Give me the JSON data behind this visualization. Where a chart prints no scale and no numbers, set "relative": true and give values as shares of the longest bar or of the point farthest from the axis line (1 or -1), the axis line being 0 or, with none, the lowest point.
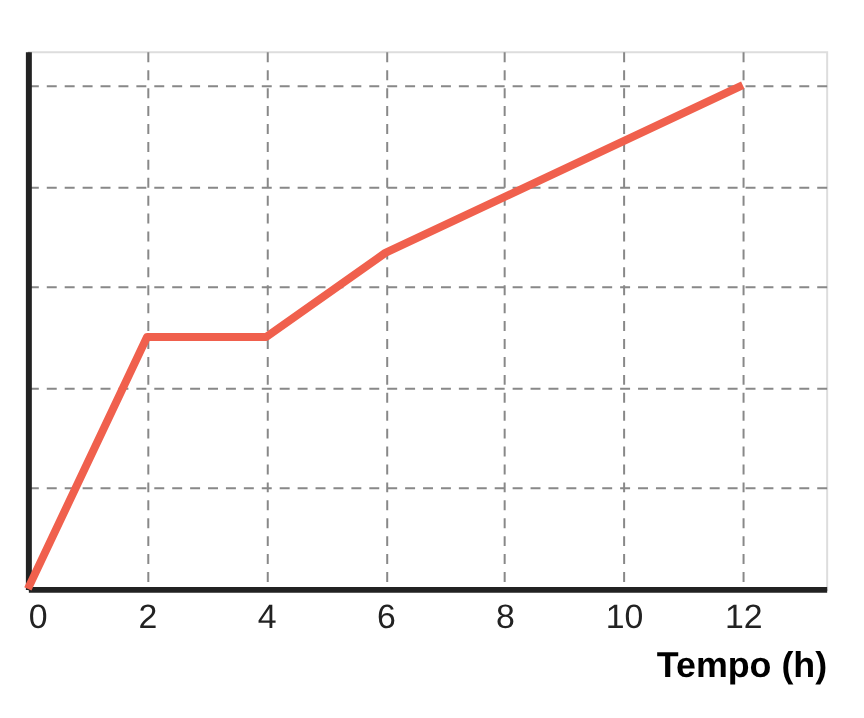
{
  "chart_data": {
    "type": "line",
    "xlabel": "Tempo (h)",
    "relative": true,
    "x": [
      0,
      2,
      4,
      6,
      12
    ],
    "series": [
      {
        "color": "#f0604d",
        "values": [
          0,
          0.5,
          0.5,
          0.667,
          1
        ]
      }
    ],
    "xlim": [
      0,
      13.4
    ],
    "xticks": [
      0,
      2,
      4,
      6,
      8,
      10,
      12
    ],
    "grid": true,
    "line_style": "solid",
    "marker": "none",
    "legend": false
  }
}
